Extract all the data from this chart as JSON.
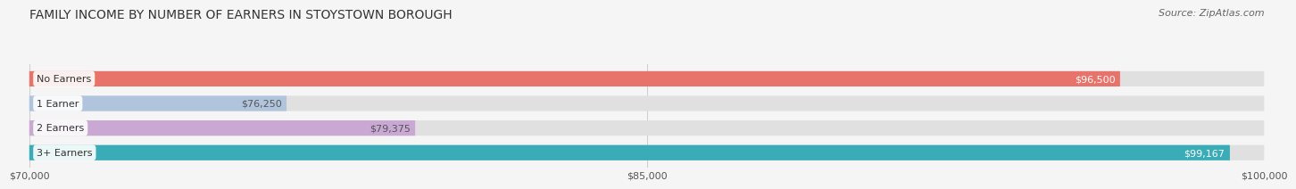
{
  "title": "FAMILY INCOME BY NUMBER OF EARNERS IN STOYSTOWN BOROUGH",
  "source": "Source: ZipAtlas.com",
  "categories": [
    "No Earners",
    "1 Earner",
    "2 Earners",
    "3+ Earners"
  ],
  "values": [
    96500,
    76250,
    79375,
    99167
  ],
  "bar_colors": [
    "#E8736A",
    "#B0C4DE",
    "#C9A8D4",
    "#3AACB8"
  ],
  "label_colors": [
    "#ffffff",
    "#555555",
    "#555555",
    "#ffffff"
  ],
  "x_min": 70000,
  "x_max": 100000,
  "x_ticks": [
    70000,
    85000,
    100000
  ],
  "x_tick_labels": [
    "$70,000",
    "$85,000",
    "$100,000"
  ],
  "value_labels": [
    "$96,500",
    "$76,250",
    "$79,375",
    "$99,167"
  ],
  "bg_color": "#f5f5f5",
  "bar_bg_color": "#e0e0e0",
  "title_fontsize": 10,
  "source_fontsize": 8,
  "label_fontsize": 8,
  "value_fontsize": 8,
  "tick_fontsize": 8
}
